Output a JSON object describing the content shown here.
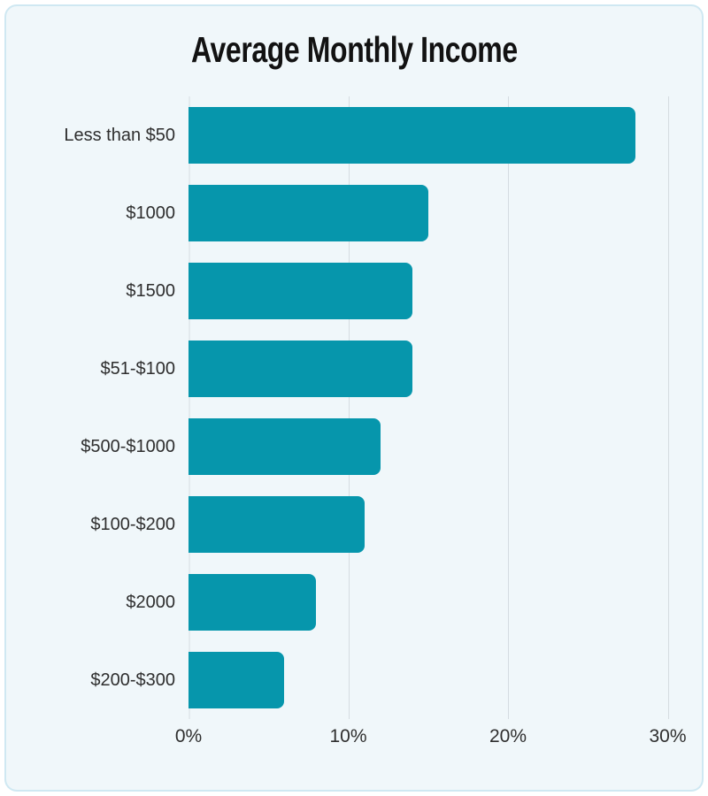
{
  "title": "Average Monthly Income",
  "chart_data": {
    "type": "bar",
    "orientation": "horizontal",
    "title": "Average Monthly Income",
    "categories": [
      "Less than $50",
      "$1000",
      "$1500",
      "$51-$100",
      "$500-$1000",
      "$100-$200",
      "$2000",
      "$200-$300"
    ],
    "values": [
      28,
      15,
      14,
      14,
      12,
      11,
      8,
      6
    ],
    "value_unit": "%",
    "xlabel": "",
    "ylabel": "",
    "xlim": [
      0,
      32
    ],
    "x_ticks": [
      {
        "value": 0,
        "label": "0%"
      },
      {
        "value": 10,
        "label": "10%"
      },
      {
        "value": 20,
        "label": "20%"
      },
      {
        "value": 30,
        "label": "30%"
      }
    ],
    "grid": true,
    "legend": false
  },
  "colors": {
    "bar": "#0696ac",
    "card_bg": "#f0f7fa",
    "card_border": "#cfe8f2",
    "grid_line": "#d5dce1",
    "axis_line": "#e3eaee",
    "label_text": "#2e2e2e",
    "title_text": "#121212"
  }
}
